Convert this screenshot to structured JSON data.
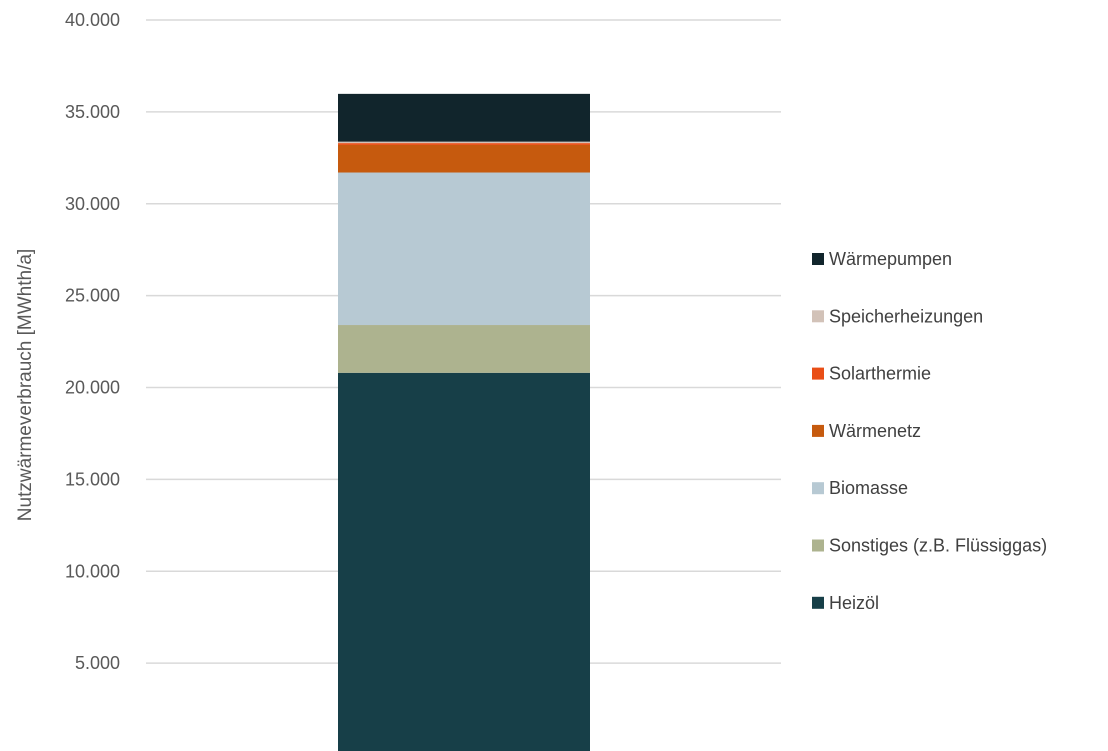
{
  "chart_data": {
    "type": "bar",
    "stacked": true,
    "categories": [
      ""
    ],
    "title": "",
    "xlabel": "",
    "ylabel": "Nutzwärmeverbrauch [MWhth/a]",
    "ylim": [
      0,
      40000
    ],
    "yticks": [
      5000,
      10000,
      15000,
      20000,
      25000,
      30000,
      35000,
      40000
    ],
    "ytick_labels": [
      "5.000",
      "10.000",
      "15.000",
      "20.000",
      "25.000",
      "30.000",
      "35.000",
      "40.000"
    ],
    "grid": true,
    "legend_position": "right",
    "series": [
      {
        "name": "Heizöl",
        "values": [
          20800
        ],
        "color": "#173f48"
      },
      {
        "name": "Sonstiges (z.B. Flüssiggas)",
        "values": [
          2600
        ],
        "color": "#adb38f"
      },
      {
        "name": "Biomasse",
        "values": [
          8300
        ],
        "color": "#b7c9d3"
      },
      {
        "name": "Wärmenetz",
        "values": [
          1500
        ],
        "color": "#c65a0e"
      },
      {
        "name": "Solarthermie",
        "values": [
          100
        ],
        "color": "#e94e16"
      },
      {
        "name": "Speicherheizungen",
        "values": [
          80
        ],
        "color": "#d2c2b8"
      },
      {
        "name": "Wärmepumpen",
        "values": [
          2600
        ],
        "color": "#11252c"
      }
    ],
    "legend_order": [
      "Wärmepumpen",
      "Speicherheizungen",
      "Solarthermie",
      "Wärmenetz",
      "Biomasse",
      "Sonstiges (z.B. Flüssiggas)",
      "Heizöl"
    ]
  }
}
